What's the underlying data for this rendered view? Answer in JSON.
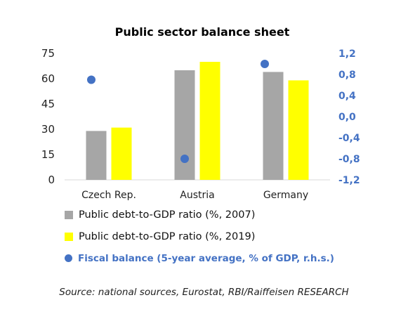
{
  "chart_data": {
    "type": "bar",
    "title": "Public sector balance sheet",
    "categories": [
      "Czech Rep.",
      "Austria",
      "Germany"
    ],
    "series": [
      {
        "name": "Public debt-to-GDP ratio (%, 2007)",
        "type": "bar",
        "axis": "left",
        "color": "#a6a6a6",
        "values": [
          29,
          65,
          64
        ]
      },
      {
        "name": "Public debt-to-GDP ratio (%, 2019)",
        "type": "bar",
        "axis": "left",
        "color": "#ffff00",
        "values": [
          31,
          70,
          59
        ]
      },
      {
        "name": "Fiscal balance (5-year average, % of GDP, r.h.s.)",
        "type": "scatter",
        "axis": "right",
        "color": "#4472c4",
        "values": [
          0.7,
          -0.8,
          1.0
        ]
      }
    ],
    "ylim": [
      0,
      75
    ],
    "yticks": [
      "0",
      "15",
      "30",
      "45",
      "60",
      "75"
    ],
    "y2lim": [
      -1.2,
      1.2
    ],
    "y2ticks": [
      "-1,2",
      "-0,8",
      "-0,4",
      "0,0",
      "0,4",
      "0,8",
      "1,2"
    ],
    "y2_color": "#4472c4",
    "grid": false,
    "legend_position": "bottom"
  },
  "source": "Source: national sources, Eurostat, RBI/Raiffeisen RESEARCH"
}
